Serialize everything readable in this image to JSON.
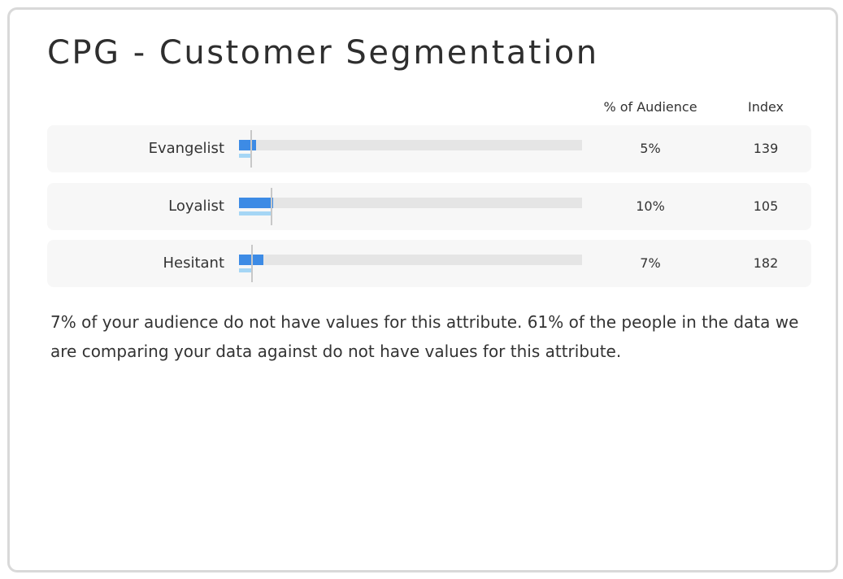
{
  "card": {
    "title": "CPG - Customer Segmentation",
    "columns": {
      "pct": "% of Audience",
      "index": "Index"
    },
    "note": "7% of your audience do not have values for this attribute. 61% of the people in the data we are comparing your data against do not have values for this attribute."
  },
  "colors": {
    "audience_bar": "#3d8be5",
    "comparison_bar": "#a5d6f5",
    "track": "#e5e5e5"
  },
  "chart_data": {
    "type": "bar",
    "categories": [
      "Evangelist",
      "Loyalist",
      "Hesitant"
    ],
    "series": [
      {
        "values": [
          5,
          10,
          7
        ],
        "unit": "%"
      },
      {
        "values": [
          3.6,
          9.5,
          3.8
        ],
        "unit": "%"
      }
    ],
    "pct_labels": [
      "5%",
      "10%",
      "7%"
    ],
    "index_labels": [
      "139",
      "105",
      "182"
    ],
    "xlim": [
      0,
      100
    ]
  }
}
